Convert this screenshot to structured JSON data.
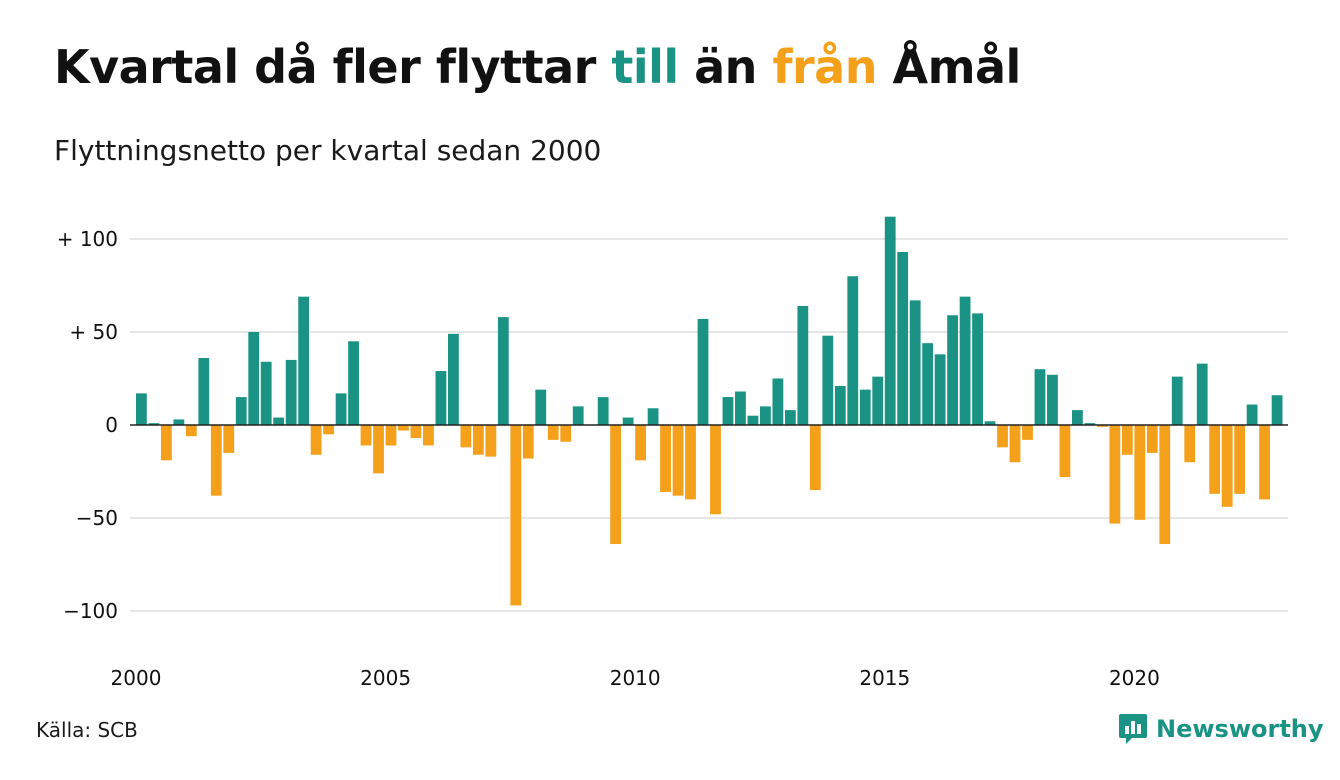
{
  "title": {
    "part1": "Kvartal då fler flyttar ",
    "highlight1": "till",
    "part2": " än ",
    "highlight2": "från",
    "part3": " Åmål"
  },
  "subtitle": "Flyttningsnetto per kvartal sedan 2000",
  "source": "Källa: SCB",
  "brand": {
    "name": "Newsworthy",
    "icon": "bar-chart-speech-bubble-icon"
  },
  "colors": {
    "positive": "#1a9384",
    "negative": "#f5a01a",
    "grid": "#dddddd",
    "zero": "#222222",
    "brand": "#1a9384"
  },
  "chart_data": {
    "type": "bar",
    "title": "Kvartal då fler flyttar till än från Åmål",
    "subtitle": "Flyttningsnetto per kvartal sedan 2000",
    "x_start": "2000 Q1",
    "x_ticks": [
      "2000",
      "2005",
      "2010",
      "2015",
      "2020"
    ],
    "y_ticks": [
      {
        "value": 100,
        "label": "+ 100"
      },
      {
        "value": 50,
        "label": "+  50"
      },
      {
        "value": 0,
        "label": "0"
      },
      {
        "value": -50,
        "label": "−50"
      },
      {
        "value": -100,
        "label": "−100"
      }
    ],
    "ylim": [
      -100,
      112
    ],
    "grid": true,
    "values": [
      17,
      1,
      -19,
      3,
      -6,
      36,
      -38,
      -15,
      15,
      50,
      34,
      4,
      35,
      69,
      -16,
      -5,
      17,
      45,
      -11,
      -26,
      -11,
      -3,
      -7,
      -11,
      29,
      49,
      -12,
      -16,
      -17,
      58,
      -97,
      -18,
      19,
      -8,
      -9,
      10,
      0,
      15,
      -64,
      4,
      -19,
      9,
      -36,
      -38,
      -40,
      57,
      -48,
      15,
      18,
      5,
      10,
      25,
      8,
      64,
      -35,
      48,
      21,
      80,
      19,
      26,
      112,
      93,
      67,
      44,
      38,
      59,
      69,
      60,
      2,
      -12,
      -20,
      -8,
      30,
      27,
      -28,
      8,
      1,
      -1,
      -53,
      -16,
      -51,
      -15,
      -64,
      26,
      -20,
      33,
      -37,
      -44,
      -37,
      11,
      -40,
      16
    ]
  }
}
